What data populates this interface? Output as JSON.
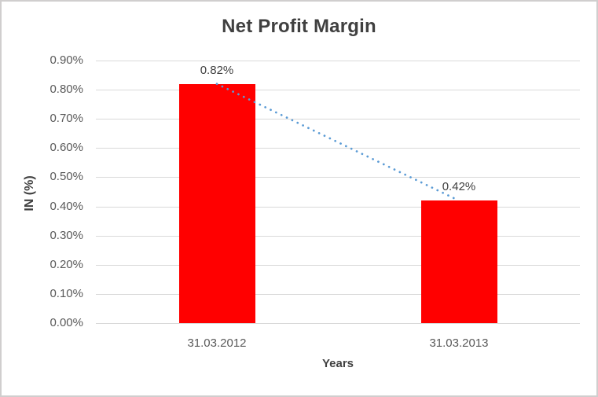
{
  "chart_data": {
    "type": "bar",
    "title": "Net Profit Margin",
    "xlabel": "Years",
    "ylabel": "IN (%)",
    "categories": [
      "31.03.2012",
      "31.03.2013"
    ],
    "values": [
      0.82,
      0.42
    ],
    "data_labels": [
      "0.82%",
      "0.42%"
    ],
    "yticks": {
      "values": [
        0,
        0.1,
        0.2,
        0.3,
        0.4,
        0.5,
        0.6,
        0.7,
        0.8,
        0.9
      ],
      "labels": [
        "0.00%",
        "0.10%",
        "0.20%",
        "0.30%",
        "0.40%",
        "0.50%",
        "0.60%",
        "0.70%",
        "0.80%",
        "0.90%"
      ]
    },
    "ylim": [
      0,
      0.9
    ],
    "grid": true,
    "legend": "none",
    "trendline": {
      "type": "linear",
      "style": "dotted",
      "color": "#5B9BD5"
    },
    "colors": {
      "bar": "#FF0000",
      "gridline": "#D9D9D9",
      "tick_text": "#595959",
      "data_label_text": "#404040",
      "title_text": "#404040",
      "frame_border": "#D0CECE",
      "background": "#FFFFFF"
    }
  }
}
